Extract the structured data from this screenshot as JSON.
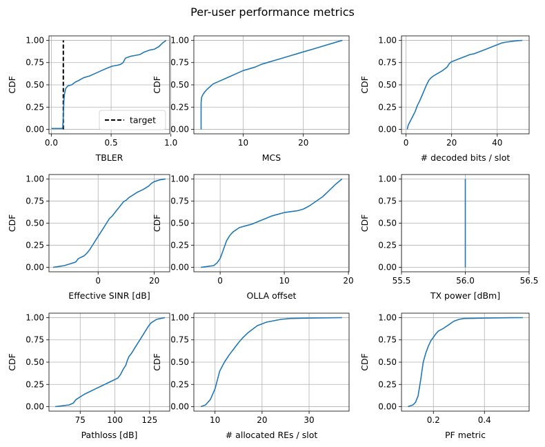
{
  "figure": {
    "title": "Per-user performance metrics"
  },
  "colors": {
    "series": "#1f77b4",
    "grid": "#b0b0b0",
    "target": "#000000"
  },
  "chart_data": [
    {
      "type": "line",
      "xlabel": "TBLER",
      "ylabel": "CDF",
      "xlim": [
        -0.02,
        0.99
      ],
      "ylim": [
        -0.05,
        1.05
      ],
      "xticks": [
        0.0,
        0.5,
        1.0
      ],
      "xtick_labels": [
        "0.0",
        "0.5",
        "1.0"
      ],
      "yticks": [
        0.0,
        0.25,
        0.5,
        0.75,
        1.0
      ],
      "ytick_labels": [
        "0.00",
        "0.25",
        "0.50",
        "0.75",
        "1.00"
      ],
      "grid": true,
      "legend": {
        "position": "lower right",
        "entries": [
          "target"
        ]
      },
      "target_line": {
        "x": 0.1,
        "y": [
          0.0,
          1.0
        ],
        "style": "dashed",
        "name": "target"
      },
      "series": [
        {
          "x": [
            0.0,
            0.09,
            0.095,
            0.1,
            0.105,
            0.11,
            0.12,
            0.14,
            0.17,
            0.2,
            0.23,
            0.27,
            0.32,
            0.37,
            0.42,
            0.47,
            0.51,
            0.55,
            0.58,
            0.6,
            0.62,
            0.66,
            0.7,
            0.74,
            0.78,
            0.82,
            0.86,
            0.9,
            0.93,
            0.96
          ],
          "y": [
            0.01,
            0.01,
            0.02,
            0.15,
            0.33,
            0.4,
            0.46,
            0.49,
            0.5,
            0.53,
            0.55,
            0.58,
            0.6,
            0.63,
            0.66,
            0.69,
            0.71,
            0.72,
            0.73,
            0.75,
            0.8,
            0.82,
            0.83,
            0.84,
            0.87,
            0.89,
            0.9,
            0.93,
            0.97,
            1.0
          ]
        }
      ]
    },
    {
      "type": "line",
      "xlabel": "MCS",
      "ylabel": "CDF",
      "xlim": [
        1.8,
        27.6
      ],
      "ylim": [
        -0.05,
        1.05
      ],
      "xticks": [
        10,
        20
      ],
      "xtick_labels": [
        "10",
        "20"
      ],
      "yticks": [
        0.0,
        0.25,
        0.5,
        0.75,
        1.0
      ],
      "ytick_labels": [
        "0.00",
        "0.25",
        "0.50",
        "0.75",
        "1.00"
      ],
      "grid": true,
      "series": [
        {
          "x": [
            3,
            3,
            3.1,
            3.3,
            3.6,
            4,
            4.5,
            5,
            6,
            7,
            8,
            9,
            10,
            11,
            12,
            13,
            14,
            15,
            16,
            17,
            18,
            19,
            20,
            21,
            22,
            23,
            24,
            25,
            26,
            26.5
          ],
          "y": [
            0.0,
            0.3,
            0.36,
            0.39,
            0.42,
            0.45,
            0.48,
            0.51,
            0.54,
            0.57,
            0.6,
            0.63,
            0.66,
            0.68,
            0.7,
            0.73,
            0.75,
            0.77,
            0.79,
            0.81,
            0.83,
            0.85,
            0.87,
            0.89,
            0.91,
            0.93,
            0.95,
            0.97,
            0.99,
            1.0
          ]
        }
      ]
    },
    {
      "type": "line",
      "xlabel": "# decoded bits / slot",
      "ylabel": "CDF",
      "xlim": [
        -2,
        54
      ],
      "ylim": [
        -0.05,
        1.05
      ],
      "xticks": [
        0,
        20,
        40
      ],
      "xtick_labels": [
        "0",
        "20",
        "40"
      ],
      "yticks": [
        0.0,
        0.25,
        0.5,
        0.75,
        1.0
      ],
      "ytick_labels": [
        "0.00",
        "0.25",
        "0.50",
        "0.75",
        "1.00"
      ],
      "grid": true,
      "series": [
        {
          "x": [
            0.5,
            1,
            2,
            3,
            4,
            5,
            6,
            7,
            8,
            9,
            10,
            11,
            12,
            14,
            16,
            18,
            19,
            20,
            22,
            24,
            26,
            28,
            30,
            32,
            34,
            36,
            38,
            40,
            42,
            44,
            47,
            51
          ],
          "y": [
            0.0,
            0.05,
            0.1,
            0.15,
            0.2,
            0.27,
            0.32,
            0.38,
            0.44,
            0.5,
            0.55,
            0.58,
            0.6,
            0.63,
            0.66,
            0.7,
            0.74,
            0.76,
            0.78,
            0.8,
            0.82,
            0.84,
            0.85,
            0.87,
            0.89,
            0.91,
            0.93,
            0.95,
            0.97,
            0.98,
            0.99,
            1.0
          ]
        }
      ]
    },
    {
      "type": "line",
      "xlabel": "Effective SINR [dB]",
      "ylabel": "CDF",
      "xlim": [
        -17.5,
        25.5
      ],
      "ylim": [
        -0.05,
        1.05
      ],
      "xticks": [
        0,
        20
      ],
      "xtick_labels": [
        "0",
        "20"
      ],
      "yticks": [
        0.0,
        0.25,
        0.5,
        0.75,
        1.0
      ],
      "ytick_labels": [
        "0.00",
        "0.25",
        "0.50",
        "0.75",
        "1.00"
      ],
      "grid": true,
      "series": [
        {
          "x": [
            -16,
            -14,
            -12,
            -10,
            -8,
            -7,
            -5,
            -4,
            -3,
            -2,
            -1,
            0,
            1,
            2,
            3,
            4,
            5,
            6,
            7,
            8,
            9,
            10,
            11,
            12,
            14,
            16,
            18,
            19,
            20,
            22,
            24
          ],
          "y": [
            0.0,
            0.01,
            0.02,
            0.04,
            0.06,
            0.1,
            0.13,
            0.16,
            0.2,
            0.25,
            0.3,
            0.35,
            0.4,
            0.45,
            0.5,
            0.55,
            0.58,
            0.62,
            0.66,
            0.7,
            0.74,
            0.76,
            0.79,
            0.81,
            0.85,
            0.88,
            0.92,
            0.95,
            0.97,
            0.99,
            1.0
          ]
        }
      ]
    },
    {
      "type": "line",
      "xlabel": "OLLA offset",
      "ylabel": "CDF",
      "xlim": [
        -4.1,
        20.1
      ],
      "ylim": [
        -0.05,
        1.05
      ],
      "xticks": [
        0,
        10,
        20
      ],
      "xtick_labels": [
        "0",
        "10",
        "20"
      ],
      "yticks": [
        0.0,
        0.25,
        0.5,
        0.75,
        1.0
      ],
      "ytick_labels": [
        "0.00",
        "0.25",
        "0.50",
        "0.75",
        "1.00"
      ],
      "grid": true,
      "series": [
        {
          "x": [
            -3,
            -2,
            -1,
            -0.5,
            0,
            0.5,
            1,
            1.5,
            2,
            3,
            4,
            5,
            6,
            7,
            8,
            9,
            10,
            11,
            12,
            13,
            14,
            15,
            16,
            17,
            18,
            19
          ],
          "y": [
            0.0,
            0.01,
            0.02,
            0.05,
            0.1,
            0.2,
            0.3,
            0.36,
            0.4,
            0.45,
            0.47,
            0.49,
            0.52,
            0.55,
            0.58,
            0.6,
            0.62,
            0.63,
            0.64,
            0.66,
            0.7,
            0.75,
            0.8,
            0.87,
            0.94,
            1.0
          ]
        }
      ]
    },
    {
      "type": "line",
      "xlabel": "TX power [dBm]",
      "ylabel": "CDF",
      "xlim": [
        55.5,
        56.5
      ],
      "ylim": [
        -0.05,
        1.05
      ],
      "xticks": [
        55.5,
        56.0,
        56.5
      ],
      "xtick_labels": [
        "55.5",
        "56.0",
        "56.5"
      ],
      "yticks": [
        0.0,
        0.25,
        0.5,
        0.75,
        1.0
      ],
      "ytick_labels": [
        "0.00",
        "0.25",
        "0.50",
        "0.75",
        "1.00"
      ],
      "grid": true,
      "series": [
        {
          "x": [
            56.0,
            56.0
          ],
          "y": [
            0.0,
            1.0
          ]
        }
      ]
    },
    {
      "type": "line",
      "xlabel": "Pathloss [dB]",
      "ylabel": "CDF",
      "xlim": [
        52.5,
        139.5
      ],
      "ylim": [
        -0.05,
        1.05
      ],
      "xticks": [
        75,
        100,
        125
      ],
      "xtick_labels": [
        "75",
        "100",
        "125"
      ],
      "yticks": [
        0.0,
        0.25,
        0.5,
        0.75,
        1.0
      ],
      "ytick_labels": [
        "0.00",
        "0.25",
        "0.50",
        "0.75",
        "1.00"
      ],
      "grid": true,
      "series": [
        {
          "x": [
            57,
            62,
            67,
            70,
            72,
            75,
            78,
            82,
            86,
            90,
            94,
            98,
            102,
            104,
            106,
            108,
            109,
            110,
            112,
            114,
            116,
            118,
            120,
            122,
            124,
            126,
            128,
            130,
            133,
            136
          ],
          "y": [
            0.0,
            0.01,
            0.02,
            0.04,
            0.08,
            0.11,
            0.14,
            0.17,
            0.2,
            0.23,
            0.26,
            0.29,
            0.32,
            0.36,
            0.42,
            0.47,
            0.52,
            0.56,
            0.6,
            0.65,
            0.7,
            0.75,
            0.8,
            0.85,
            0.9,
            0.94,
            0.96,
            0.98,
            0.99,
            1.0
          ]
        }
      ]
    },
    {
      "type": "line",
      "xlabel": "# allocated REs / slot",
      "ylabel": "CDF",
      "xlim": [
        5.5,
        38.5
      ],
      "ylim": [
        -0.05,
        1.05
      ],
      "xticks": [
        10,
        20,
        30
      ],
      "xtick_labels": [
        "10",
        "20",
        "30"
      ],
      "yticks": [
        0.0,
        0.25,
        0.5,
        0.75,
        1.0
      ],
      "ytick_labels": [
        "0.00",
        "0.25",
        "0.50",
        "0.75",
        "1.00"
      ],
      "grid": true,
      "series": [
        {
          "x": [
            7,
            8,
            9,
            10,
            10.5,
            11,
            12,
            13,
            14,
            15,
            16,
            17,
            18,
            19,
            20,
            21,
            22,
            24,
            26,
            30,
            37
          ],
          "y": [
            0.0,
            0.02,
            0.08,
            0.2,
            0.3,
            0.4,
            0.5,
            0.58,
            0.65,
            0.72,
            0.78,
            0.83,
            0.87,
            0.91,
            0.93,
            0.95,
            0.96,
            0.98,
            0.99,
            0.995,
            1.0
          ]
        }
      ]
    },
    {
      "type": "line",
      "xlabel": "PF metric",
      "ylabel": "CDF",
      "xlim": [
        0.075,
        0.575
      ],
      "ylim": [
        -0.05,
        1.05
      ],
      "xticks": [
        0.2,
        0.4
      ],
      "xtick_labels": [
        "0.2",
        "0.4"
      ],
      "yticks": [
        0.0,
        0.25,
        0.5,
        0.75,
        1.0
      ],
      "ytick_labels": [
        "0.00",
        "0.25",
        "0.50",
        "0.75",
        "1.00"
      ],
      "grid": true,
      "series": [
        {
          "x": [
            0.1,
            0.12,
            0.13,
            0.14,
            0.15,
            0.16,
            0.17,
            0.18,
            0.19,
            0.2,
            0.21,
            0.22,
            0.24,
            0.26,
            0.28,
            0.3,
            0.32,
            0.36,
            0.4,
            0.45,
            0.5,
            0.55
          ],
          "y": [
            0.0,
            0.02,
            0.05,
            0.12,
            0.3,
            0.5,
            0.6,
            0.68,
            0.74,
            0.78,
            0.82,
            0.85,
            0.88,
            0.92,
            0.96,
            0.98,
            0.99,
            0.993,
            0.995,
            0.997,
            0.999,
            1.0
          ]
        }
      ]
    }
  ]
}
